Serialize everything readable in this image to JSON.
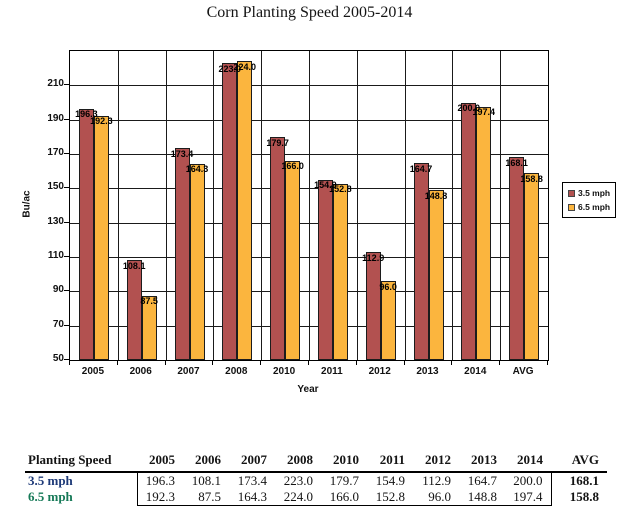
{
  "chart_data": {
    "type": "bar",
    "title": "Corn Planting Speed 2005-2014",
    "xlabel": "Year",
    "ylabel": "Bu/ac",
    "categories": [
      "2005",
      "2006",
      "2007",
      "2008",
      "2010",
      "2011",
      "2012",
      "2013",
      "2014",
      "AVG"
    ],
    "series": [
      {
        "name": "3.5 mph",
        "color": "#b25150",
        "values": [
          196.3,
          108.1,
          173.4,
          223.0,
          179.7,
          154.9,
          112.9,
          164.7,
          200.0,
          168.1
        ]
      },
      {
        "name": "6.5 mph",
        "color": "#fbb53e",
        "values": [
          192.3,
          87.5,
          164.3,
          224.0,
          166.0,
          152.8,
          96.0,
          148.8,
          197.4,
          158.8
        ]
      }
    ],
    "ylim": [
      50,
      230
    ],
    "yticks": [
      50,
      70,
      90,
      110,
      130,
      150,
      170,
      190,
      210
    ],
    "grid": {
      "horizontal": true,
      "vertical": true
    },
    "legend_position": "right",
    "data_labels": true,
    "label_decimals": 1
  },
  "table": {
    "columns": [
      "Planting Speed",
      "2005",
      "2006",
      "2007",
      "2008",
      "2010",
      "2011",
      "2012",
      "2013",
      "2014",
      "AVG"
    ],
    "rows": [
      {
        "label": "3.5 mph",
        "label_color": "#1e3a78",
        "values": [
          196.3,
          108.1,
          173.4,
          223.0,
          179.7,
          154.9,
          112.9,
          164.7,
          200.0
        ],
        "avg": 168.1
      },
      {
        "label": "6.5 mph",
        "label_color": "#177a58",
        "values": [
          192.3,
          87.5,
          164.3,
          224.0,
          166.0,
          152.8,
          96.0,
          148.8,
          197.4
        ],
        "avg": 158.8
      }
    ]
  }
}
